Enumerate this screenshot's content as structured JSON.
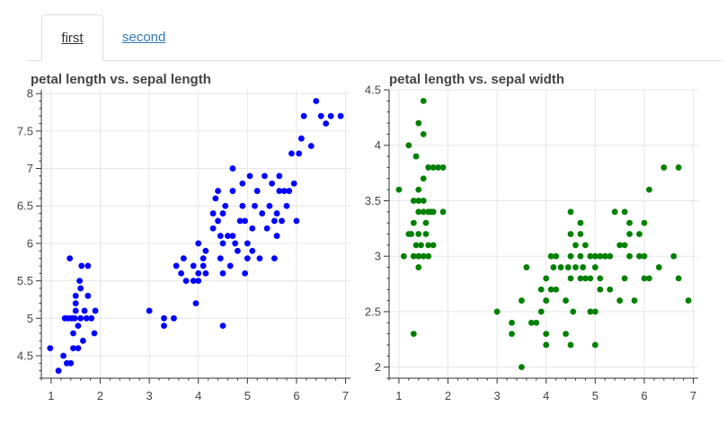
{
  "tabs": [
    {
      "label": "first",
      "active": true
    },
    {
      "label": "second",
      "active": false
    }
  ],
  "chart_data": [
    {
      "type": "scatter",
      "title": "petal length vs. sepal length",
      "xlabel": "",
      "ylabel": "",
      "xlim": [
        0.8,
        7.1
      ],
      "ylim": [
        4.2,
        8.05
      ],
      "xticks": [
        1,
        2,
        3,
        4,
        5,
        6,
        7
      ],
      "yticks": [
        4.5,
        5,
        5.5,
        6,
        6.5,
        7,
        7.5,
        8
      ],
      "grid": true,
      "color": "#0000ff",
      "points": [
        [
          0.98,
          4.6
        ],
        [
          1.15,
          4.3
        ],
        [
          1.25,
          4.5
        ],
        [
          1.28,
          5.0
        ],
        [
          1.32,
          4.4
        ],
        [
          1.35,
          5.0
        ],
        [
          1.38,
          5.8
        ],
        [
          1.4,
          4.4
        ],
        [
          1.42,
          5.0
        ],
        [
          1.45,
          4.6
        ],
        [
          1.45,
          4.8
        ],
        [
          1.48,
          5.0
        ],
        [
          1.5,
          5.1
        ],
        [
          1.5,
          5.2
        ],
        [
          1.5,
          5.3
        ],
        [
          1.55,
          4.6
        ],
        [
          1.55,
          4.9
        ],
        [
          1.58,
          5.5
        ],
        [
          1.6,
          5.0
        ],
        [
          1.6,
          5.4
        ],
        [
          1.62,
          5.7
        ],
        [
          1.65,
          4.7
        ],
        [
          1.68,
          5.1
        ],
        [
          1.72,
          5.0
        ],
        [
          1.75,
          5.3
        ],
        [
          1.75,
          5.7
        ],
        [
          1.82,
          5.0
        ],
        [
          1.88,
          4.8
        ],
        [
          1.9,
          5.1
        ],
        [
          3.0,
          5.1
        ],
        [
          3.3,
          5.0
        ],
        [
          3.3,
          4.9
        ],
        [
          3.5,
          5.0
        ],
        [
          3.55,
          5.7
        ],
        [
          3.65,
          5.6
        ],
        [
          3.7,
          5.8
        ],
        [
          3.75,
          5.5
        ],
        [
          3.9,
          5.5
        ],
        [
          3.9,
          5.7
        ],
        [
          3.95,
          5.2
        ],
        [
          4.0,
          5.5
        ],
        [
          4.0,
          5.6
        ],
        [
          4.0,
          6.0
        ],
        [
          4.1,
          5.8
        ],
        [
          4.1,
          5.7
        ],
        [
          4.15,
          5.6
        ],
        [
          4.15,
          5.9
        ],
        [
          4.3,
          6.4
        ],
        [
          4.3,
          6.2
        ],
        [
          4.35,
          6.6
        ],
        [
          4.4,
          6.7
        ],
        [
          4.4,
          6.3
        ],
        [
          4.45,
          5.8
        ],
        [
          4.45,
          6.1
        ],
        [
          4.5,
          6.0
        ],
        [
          4.5,
          5.6
        ],
        [
          4.5,
          6.4
        ],
        [
          4.5,
          4.9
        ],
        [
          4.55,
          6.5
        ],
        [
          4.6,
          6.1
        ],
        [
          4.65,
          5.7
        ],
        [
          4.7,
          6.1
        ],
        [
          4.7,
          6.7
        ],
        [
          4.7,
          7.0
        ],
        [
          4.75,
          6.0
        ],
        [
          4.8,
          5.9
        ],
        [
          4.85,
          6.3
        ],
        [
          4.9,
          6.5
        ],
        [
          4.9,
          6.8
        ],
        [
          4.95,
          5.6
        ],
        [
          4.95,
          6.3
        ],
        [
          5.0,
          6.0
        ],
        [
          5.0,
          5.8
        ],
        [
          5.05,
          6.9
        ],
        [
          5.1,
          6.2
        ],
        [
          5.1,
          5.9
        ],
        [
          5.15,
          6.5
        ],
        [
          5.2,
          6.7
        ],
        [
          5.25,
          5.8
        ],
        [
          5.3,
          6.4
        ],
        [
          5.35,
          6.9
        ],
        [
          5.4,
          6.2
        ],
        [
          5.45,
          6.5
        ],
        [
          5.5,
          6.8
        ],
        [
          5.55,
          6.3
        ],
        [
          5.55,
          5.8
        ],
        [
          5.6,
          6.1
        ],
        [
          5.6,
          6.4
        ],
        [
          5.65,
          6.9
        ],
        [
          5.65,
          6.7
        ],
        [
          5.7,
          6.3
        ],
        [
          5.75,
          6.7
        ],
        [
          5.8,
          6.5
        ],
        [
          5.85,
          6.7
        ],
        [
          5.9,
          7.2
        ],
        [
          5.95,
          6.8
        ],
        [
          6.0,
          6.3
        ],
        [
          6.05,
          7.2
        ],
        [
          6.1,
          7.4
        ],
        [
          6.15,
          7.7
        ],
        [
          6.3,
          7.3
        ],
        [
          6.4,
          7.9
        ],
        [
          6.5,
          7.7
        ],
        [
          6.6,
          7.6
        ],
        [
          6.7,
          7.7
        ],
        [
          6.9,
          7.7
        ]
      ]
    },
    {
      "type": "scatter",
      "title": "petal length vs. sepal width",
      "xlabel": "",
      "ylabel": "",
      "xlim": [
        0.8,
        7.1
      ],
      "ylim": [
        1.9,
        4.5
      ],
      "xticks": [
        1,
        2,
        3,
        4,
        5,
        6,
        7
      ],
      "yticks": [
        2,
        2.5,
        3,
        3.5,
        4,
        4.5
      ],
      "grid": true,
      "color": "#008000",
      "points": [
        [
          1.0,
          3.6
        ],
        [
          1.1,
          3.0
        ],
        [
          1.2,
          3.2
        ],
        [
          1.2,
          4.0
        ],
        [
          1.25,
          3.2
        ],
        [
          1.3,
          3.0
        ],
        [
          1.3,
          3.5
        ],
        [
          1.3,
          3.3
        ],
        [
          1.3,
          2.3
        ],
        [
          1.35,
          3.9
        ],
        [
          1.35,
          3.1
        ],
        [
          1.4,
          3.0
        ],
        [
          1.4,
          3.2
        ],
        [
          1.4,
          3.5
        ],
        [
          1.4,
          3.4
        ],
        [
          1.4,
          3.6
        ],
        [
          1.4,
          2.9
        ],
        [
          1.4,
          4.2
        ],
        [
          1.45,
          3.1
        ],
        [
          1.5,
          3.0
        ],
        [
          1.5,
          3.5
        ],
        [
          1.5,
          3.4
        ],
        [
          1.5,
          3.7
        ],
        [
          1.5,
          4.1
        ],
        [
          1.5,
          4.4
        ],
        [
          1.55,
          3.2
        ],
        [
          1.55,
          3.3
        ],
        [
          1.6,
          3.4
        ],
        [
          1.6,
          3.1
        ],
        [
          1.6,
          3.8
        ],
        [
          1.6,
          3.0
        ],
        [
          1.65,
          3.4
        ],
        [
          1.7,
          3.8
        ],
        [
          1.7,
          3.1
        ],
        [
          1.7,
          3.4
        ],
        [
          1.8,
          3.8
        ],
        [
          1.9,
          3.8
        ],
        [
          1.9,
          3.4
        ],
        [
          3.0,
          2.5
        ],
        [
          3.3,
          2.4
        ],
        [
          3.3,
          2.3
        ],
        [
          3.5,
          2.6
        ],
        [
          3.5,
          2.0
        ],
        [
          3.6,
          2.9
        ],
        [
          3.7,
          2.4
        ],
        [
          3.8,
          2.4
        ],
        [
          3.9,
          2.7
        ],
        [
          3.9,
          2.5
        ],
        [
          4.0,
          2.2
        ],
        [
          4.0,
          2.3
        ],
        [
          4.0,
          2.6
        ],
        [
          4.0,
          2.8
        ],
        [
          4.1,
          2.7
        ],
        [
          4.1,
          3.0
        ],
        [
          4.15,
          2.9
        ],
        [
          4.2,
          3.0
        ],
        [
          4.2,
          2.7
        ],
        [
          4.3,
          2.9
        ],
        [
          4.4,
          2.3
        ],
        [
          4.4,
          2.6
        ],
        [
          4.45,
          2.9
        ],
        [
          4.5,
          2.2
        ],
        [
          4.5,
          3.0
        ],
        [
          4.5,
          3.4
        ],
        [
          4.5,
          2.8
        ],
        [
          4.5,
          3.2
        ],
        [
          4.55,
          2.5
        ],
        [
          4.6,
          3.1
        ],
        [
          4.6,
          2.9
        ],
        [
          4.7,
          3.2
        ],
        [
          4.7,
          2.8
        ],
        [
          4.7,
          3.3
        ],
        [
          4.7,
          3.0
        ],
        [
          4.75,
          2.9
        ],
        [
          4.8,
          2.8
        ],
        [
          4.8,
          3.1
        ],
        [
          4.9,
          3.0
        ],
        [
          4.9,
          2.5
        ],
        [
          4.9,
          2.8
        ],
        [
          5.0,
          2.5
        ],
        [
          5.0,
          3.0
        ],
        [
          5.0,
          2.2
        ],
        [
          5.0,
          2.9
        ],
        [
          5.1,
          2.8
        ],
        [
          5.1,
          3.0
        ],
        [
          5.1,
          2.7
        ],
        [
          5.2,
          3.0
        ],
        [
          5.3,
          3.0
        ],
        [
          5.3,
          2.7
        ],
        [
          5.4,
          3.4
        ],
        [
          5.5,
          2.6
        ],
        [
          5.5,
          3.1
        ],
        [
          5.6,
          3.1
        ],
        [
          5.6,
          3.4
        ],
        [
          5.6,
          2.8
        ],
        [
          5.7,
          3.3
        ],
        [
          5.7,
          3.2
        ],
        [
          5.7,
          3.0
        ],
        [
          5.8,
          2.6
        ],
        [
          5.9,
          3.0
        ],
        [
          5.9,
          3.2
        ],
        [
          6.0,
          3.3
        ],
        [
          6.0,
          2.8
        ],
        [
          6.0,
          3.0
        ],
        [
          6.1,
          3.6
        ],
        [
          6.1,
          2.8
        ],
        [
          6.3,
          2.9
        ],
        [
          6.4,
          3.8
        ],
        [
          6.6,
          3.0
        ],
        [
          6.7,
          3.8
        ],
        [
          6.7,
          2.8
        ],
        [
          6.9,
          2.6
        ]
      ]
    }
  ]
}
